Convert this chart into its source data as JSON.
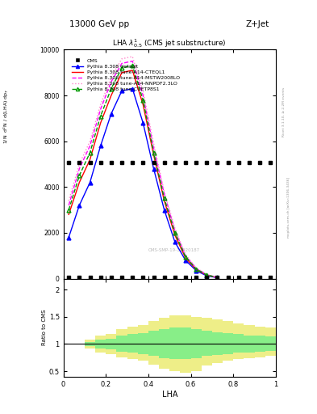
{
  "title_top": "13000 GeV pp",
  "title_right": "Z+Jet",
  "plot_title": "LHA $\\lambda^{1}_{0.5}$ (CMS jet substructure)",
  "xlabel": "LHA",
  "ylabel_ratio": "Ratio to CMS",
  "watermark": "CMS-SMP-19-11920187",
  "right_label": "mcplots.cern.ch [arXiv:1306.3436]",
  "right_label2": "Rivet 3.1.10, ≥ 2.2M events",
  "cms_x": [
    0.025,
    0.075,
    0.125,
    0.175,
    0.225,
    0.275,
    0.325,
    0.375,
    0.425,
    0.475,
    0.525,
    0.575,
    0.625,
    0.675,
    0.725,
    0.775,
    0.825,
    0.875,
    0.925,
    0.975
  ],
  "pythia_default_x": [
    0.025,
    0.075,
    0.125,
    0.175,
    0.225,
    0.275,
    0.325,
    0.375,
    0.425,
    0.475,
    0.525,
    0.575,
    0.625,
    0.675,
    0.725
  ],
  "pythia_default_y": [
    1800,
    3200,
    4200,
    5800,
    7200,
    8200,
    8300,
    6800,
    4800,
    3000,
    1600,
    800,
    350,
    120,
    40
  ],
  "pythia_cteq_x": [
    0.025,
    0.075,
    0.125,
    0.175,
    0.225,
    0.275,
    0.325,
    0.375,
    0.425,
    0.475,
    0.525,
    0.575,
    0.625,
    0.675,
    0.725
  ],
  "pythia_cteq_y": [
    2800,
    4200,
    5200,
    6800,
    8000,
    9000,
    9100,
    7600,
    5400,
    3400,
    1900,
    900,
    400,
    150,
    50
  ],
  "pythia_mstw_x": [
    0.025,
    0.075,
    0.125,
    0.175,
    0.225,
    0.275,
    0.325,
    0.375,
    0.425,
    0.475,
    0.525,
    0.575,
    0.625,
    0.675,
    0.725
  ],
  "pythia_mstw_y": [
    3200,
    4800,
    5800,
    7400,
    8600,
    9400,
    9500,
    8000,
    5700,
    3700,
    2100,
    1000,
    450,
    170,
    55
  ],
  "pythia_nnpdf_x": [
    0.025,
    0.075,
    0.125,
    0.175,
    0.225,
    0.275,
    0.325,
    0.375,
    0.425,
    0.475,
    0.525,
    0.575,
    0.625,
    0.675,
    0.725
  ],
  "pythia_nnpdf_y": [
    3400,
    5000,
    6000,
    7600,
    8800,
    9600,
    9700,
    8200,
    5900,
    3800,
    2200,
    1050,
    470,
    180,
    58
  ],
  "pythia_cuetp_x": [
    0.025,
    0.075,
    0.125,
    0.175,
    0.225,
    0.275,
    0.325,
    0.375,
    0.425,
    0.475,
    0.525,
    0.575,
    0.625,
    0.675,
    0.725
  ],
  "pythia_cuetp_y": [
    3000,
    4500,
    5500,
    7100,
    8300,
    9200,
    9300,
    7800,
    5500,
    3500,
    2000,
    950,
    420,
    160,
    52
  ],
  "ratio_bins_x": [
    0.0,
    0.05,
    0.1,
    0.15,
    0.2,
    0.25,
    0.3,
    0.35,
    0.4,
    0.45,
    0.5,
    0.55,
    0.6,
    0.65,
    0.7,
    0.75,
    0.8,
    0.85,
    0.9,
    0.95,
    1.0
  ],
  "yellow_low": [
    1.0,
    1.0,
    0.92,
    0.85,
    0.82,
    0.75,
    0.72,
    0.7,
    0.62,
    0.55,
    0.5,
    0.48,
    0.5,
    0.6,
    0.65,
    0.7,
    0.72,
    0.74,
    0.76,
    0.78,
    0.78
  ],
  "yellow_high": [
    1.0,
    1.0,
    1.08,
    1.15,
    1.18,
    1.28,
    1.32,
    1.35,
    1.42,
    1.48,
    1.52,
    1.52,
    1.5,
    1.48,
    1.45,
    1.42,
    1.38,
    1.35,
    1.32,
    1.3,
    1.3
  ],
  "green_low": [
    1.0,
    1.0,
    0.96,
    0.92,
    0.9,
    0.86,
    0.84,
    0.82,
    0.78,
    0.74,
    0.72,
    0.72,
    0.74,
    0.78,
    0.8,
    0.82,
    0.84,
    0.85,
    0.86,
    0.87,
    0.87
  ],
  "green_high": [
    1.0,
    1.0,
    1.04,
    1.08,
    1.1,
    1.16,
    1.18,
    1.2,
    1.24,
    1.28,
    1.3,
    1.3,
    1.28,
    1.25,
    1.22,
    1.2,
    1.18,
    1.16,
    1.15,
    1.14,
    1.14
  ],
  "ylim_main": [
    0,
    10000
  ],
  "ylim_ratio": [
    0.4,
    2.2
  ],
  "xlim": [
    0,
    1
  ],
  "yticks_main": [
    0,
    2000,
    4000,
    6000,
    8000,
    10000
  ],
  "ytick_labels_main": [
    "0",
    "2000",
    "4000",
    "6000",
    "8000",
    "10000"
  ],
  "color_cms": "black",
  "color_default": "blue",
  "color_cteq": "red",
  "color_mstw": "#ff00ff",
  "color_nnpdf": "#ff88cc",
  "color_cuetp": "#009900",
  "color_yellow": "#eeee88",
  "color_green": "#88ee88"
}
